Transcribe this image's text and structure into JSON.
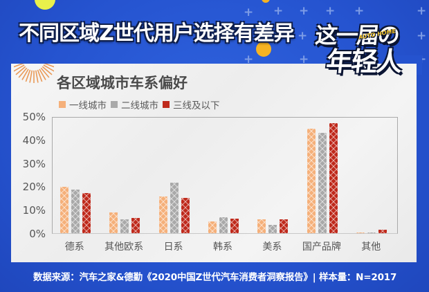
{
  "header": {
    "title": "不同区域Z世代用户选择有差异",
    "logo_line1": "这一届の",
    "logo_line2": "年轻人",
    "logo_badge": "AUTO HOME"
  },
  "colors": {
    "background": "#2553cf",
    "tier1": "#f5b07a",
    "tier2": "#a9a9a9",
    "tier3": "#bf2a1c"
  },
  "chart_data": {
    "type": "bar",
    "title": "各区域城市车系偏好",
    "categories": [
      "德系",
      "其他欧系",
      "日系",
      "韩系",
      "美系",
      "国产品牌",
      "其他"
    ],
    "series": [
      {
        "name": "一线城市",
        "values": [
          19.8,
          9.0,
          15.6,
          5.1,
          5.8,
          44.6,
          0.2
        ]
      },
      {
        "name": "二线城市",
        "values": [
          18.6,
          5.9,
          21.5,
          6.8,
          3.5,
          43.0,
          0.4
        ]
      },
      {
        "name": "三线及以下",
        "values": [
          17.3,
          6.4,
          15.1,
          6.3,
          6.0,
          47.1,
          1.5
        ]
      }
    ],
    "xlabel": "",
    "ylabel": "",
    "ylim": [
      0,
      50
    ],
    "yticks": [
      "0%",
      "10%",
      "20%",
      "30%",
      "40%",
      "50%"
    ],
    "grid": false,
    "legend_position": "top-left"
  },
  "footer": {
    "source": "数据来源：汽车之家&德勤《2020中国Z世代汽车消费者洞察报告》| 样本量：N=2017"
  }
}
